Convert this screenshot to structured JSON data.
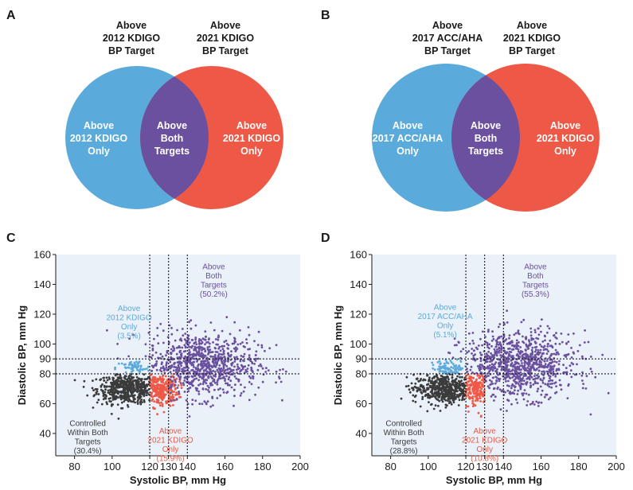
{
  "colors": {
    "blue": "#5aaadb",
    "red": "#ee5846",
    "overlap": "#6a509e",
    "controlled": "#3b3b3b",
    "plot_bg": "#eaf1f9"
  },
  "venns": [
    {
      "letter": "A",
      "left_top": [
        "Above",
        "2012 KDIGO",
        "BP Target"
      ],
      "right_top": [
        "Above",
        "2021 KDIGO",
        "BP Target"
      ],
      "left_in": [
        "Above",
        "2012 KDIGO",
        "Only"
      ],
      "mid_in": [
        "Above",
        "Both",
        "Targets"
      ],
      "right_in": [
        "Above",
        "2021 KDIGO",
        "Only"
      ]
    },
    {
      "letter": "B",
      "left_top": [
        "Above",
        "2017 ACC/AHA",
        "BP Target"
      ],
      "right_top": [
        "Above",
        "2021 KDIGO",
        "BP Target"
      ],
      "left_in": [
        "Above",
        "2017 ACC/AHA",
        "Only"
      ],
      "mid_in": [
        "Above",
        "Both",
        "Targets"
      ],
      "right_in": [
        "Above",
        "2021 KDIGO",
        "Only"
      ]
    }
  ],
  "chart_data": [
    {
      "type": "scatter",
      "panel": "C",
      "xlabel": "Systolic BP, mm Hg",
      "ylabel": "Diastolic BP, mm Hg",
      "xlim": [
        70,
        200
      ],
      "ylim": [
        25,
        160
      ],
      "xticks": [
        80,
        100,
        120,
        130,
        140,
        160,
        180,
        200
      ],
      "yticks": [
        40,
        60,
        80,
        90,
        100,
        120,
        140,
        160
      ],
      "thresholds": {
        "sbp": [
          120,
          130,
          140
        ],
        "dbp": [
          80,
          90
        ]
      },
      "groups": [
        {
          "label": [
            "Controlled",
            "Within Both",
            "Targets",
            "(30.4%)"
          ],
          "color": "#3b3b3b",
          "percent": 30.4
        },
        {
          "label": [
            "Above",
            "2012 KDIGO",
            "Only",
            "(3.5%)"
          ],
          "color": "#5aaadb",
          "percent": 3.5
        },
        {
          "label": [
            "Above",
            "2021 KDIGO",
            "Only",
            "(15.9%)"
          ],
          "color": "#ee5846",
          "percent": 15.9
        },
        {
          "label": [
            "Above",
            "Both",
            "Targets",
            "(50.2%)"
          ],
          "color": "#6a509e",
          "percent": 50.2
        }
      ]
    },
    {
      "type": "scatter",
      "panel": "D",
      "xlabel": "Systolic BP, mm Hg",
      "ylabel": "Diastolic BP, mm Hg",
      "xlim": [
        70,
        200
      ],
      "ylim": [
        25,
        160
      ],
      "xticks": [
        80,
        100,
        120,
        130,
        140,
        160,
        180,
        200
      ],
      "yticks": [
        40,
        60,
        80,
        90,
        100,
        120,
        140,
        160
      ],
      "thresholds": {
        "sbp": [
          120,
          130,
          140
        ],
        "dbp": [
          80,
          90
        ]
      },
      "groups": [
        {
          "label": [
            "Controlled",
            "Within Both",
            "Targets",
            "(28.8%)"
          ],
          "color": "#3b3b3b",
          "percent": 28.8
        },
        {
          "label": [
            "Above",
            "2017 ACC/AHA",
            "Only",
            "(5.1%)"
          ],
          "color": "#5aaadb",
          "percent": 5.1
        },
        {
          "label": [
            "Above",
            "2021 KDIGO",
            "Only",
            "(10.8%)"
          ],
          "color": "#ee5846",
          "percent": 10.8
        },
        {
          "label": [
            "Above",
            "Both",
            "Targets",
            "(55.3%)"
          ],
          "color": "#6a509e",
          "percent": 55.3
        }
      ]
    }
  ]
}
